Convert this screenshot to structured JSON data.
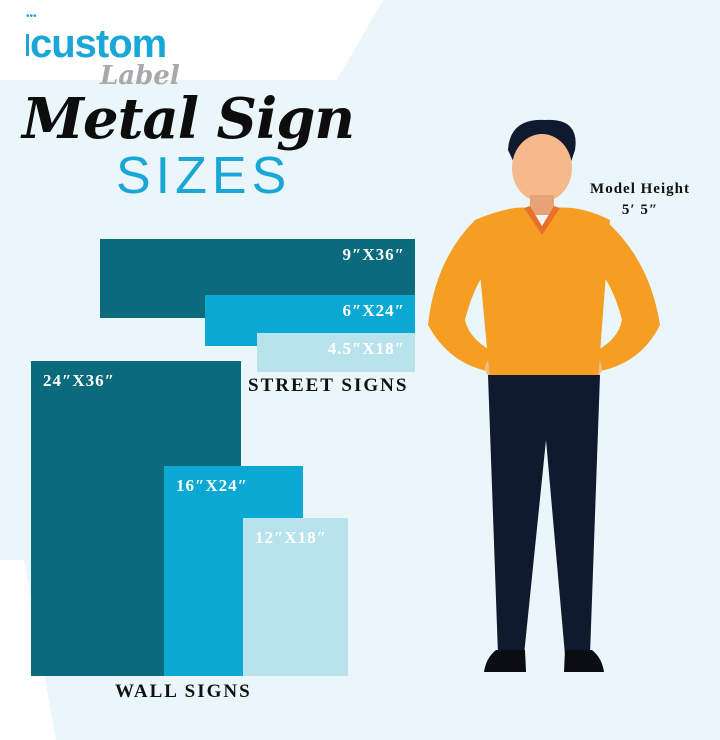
{
  "logo": {
    "top": "custom",
    "bottom": "Label"
  },
  "title": "Metal Sign",
  "subtitle": "SIZES",
  "street_signs": {
    "label": "STREET SIGNS",
    "sizes": [
      "9″X36″",
      "6″X24″",
      "4.5″X18″"
    ]
  },
  "wall_signs": {
    "label": "WALL SIGNS",
    "sizes": [
      "24″X36″",
      "16″X24″",
      "12″X18″"
    ]
  },
  "model": {
    "label": "Model Height",
    "height": "5′ 5″"
  },
  "colors": {
    "dark_teal": "#0b6a7c",
    "cyan": "#0aa8d2",
    "light_blue": "#b9e3ec",
    "shirt": "#f59e23",
    "pants": "#0f1a2e"
  }
}
